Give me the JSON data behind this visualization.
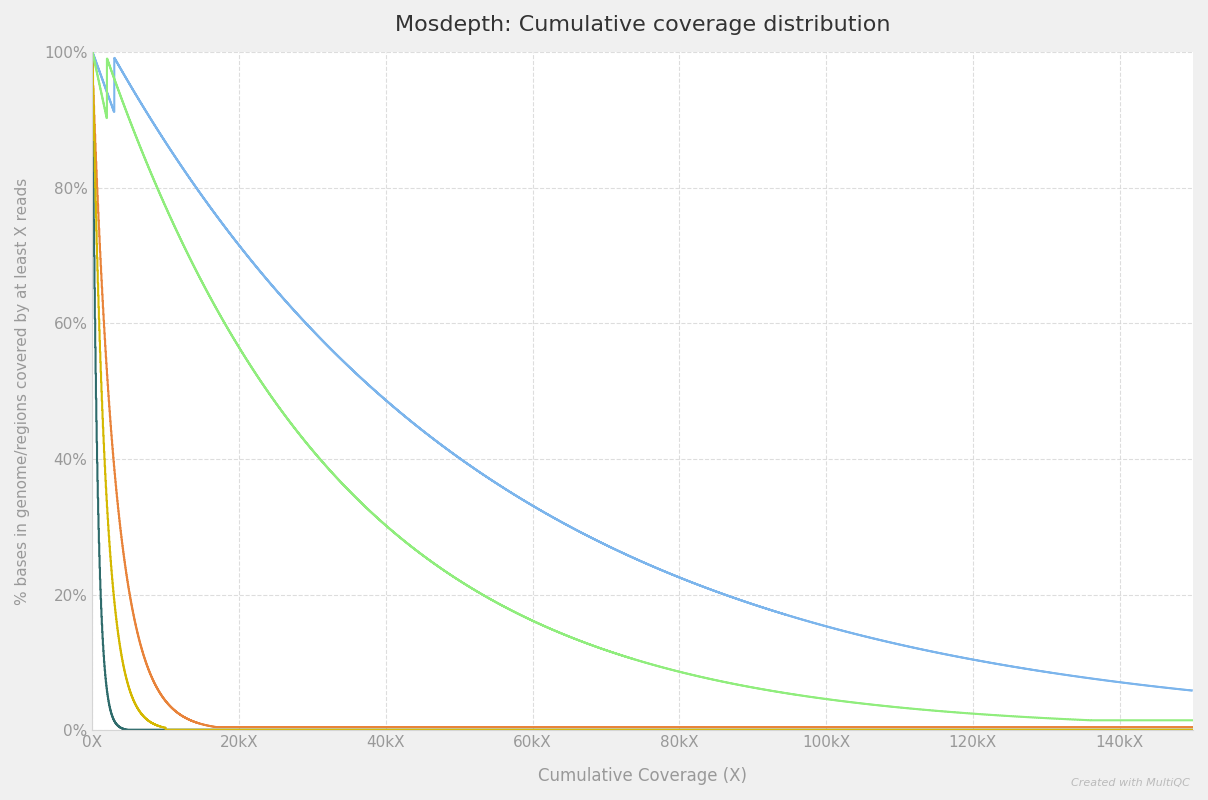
{
  "title": "Mosdepth: Cumulative coverage distribution",
  "xlabel": "Cumulative Coverage (X)",
  "ylabel": "% bases in genome/regions covered by at least X reads",
  "background_color": "#f0f0f0",
  "plot_bg_color": "#ffffff",
  "grid_color": "#d5d5d5",
  "title_color": "#333333",
  "axis_label_color": "#999999",
  "tick_color": "#999999",
  "xlim": [
    0,
    150000
  ],
  "ylim": [
    0,
    1.0
  ],
  "xticks": [
    0,
    20000,
    40000,
    60000,
    80000,
    100000,
    120000,
    140000
  ],
  "xtick_labels": [
    "0X",
    "20kX",
    "40kX",
    "60kX",
    "80kX",
    "100kX",
    "120kX",
    "140kX"
  ],
  "yticks": [
    0.0,
    0.2,
    0.4,
    0.6,
    0.8,
    1.0
  ],
  "ytick_labels": [
    "0%",
    "20%",
    "40%",
    "60%",
    "80%",
    "100%"
  ],
  "watermark": "Created with MultiQC",
  "series": [
    {
      "name": "dark_teal",
      "color": "#2e6b6b",
      "linewidth": 1.5,
      "params": {
        "type": "exp",
        "scale": 1200,
        "min_val": 0.002
      }
    },
    {
      "name": "orange",
      "color": "#e8833a",
      "linewidth": 1.5,
      "params": {
        "type": "exp",
        "scale": 5000,
        "min_val": 0.005
      }
    },
    {
      "name": "yellow",
      "color": "#d4b800",
      "linewidth": 1.5,
      "params": {
        "type": "exp",
        "scale": 2500,
        "min_val": 0.002
      }
    },
    {
      "name": "blue",
      "color": "#7cb5ec",
      "linewidth": 1.5,
      "params": {
        "type": "blue",
        "scale": 55000,
        "min_val": 0.02
      }
    },
    {
      "name": "green",
      "color": "#90ed7d",
      "linewidth": 1.5,
      "params": {
        "type": "green",
        "scale": 38000,
        "min_val": 0.015
      }
    }
  ]
}
